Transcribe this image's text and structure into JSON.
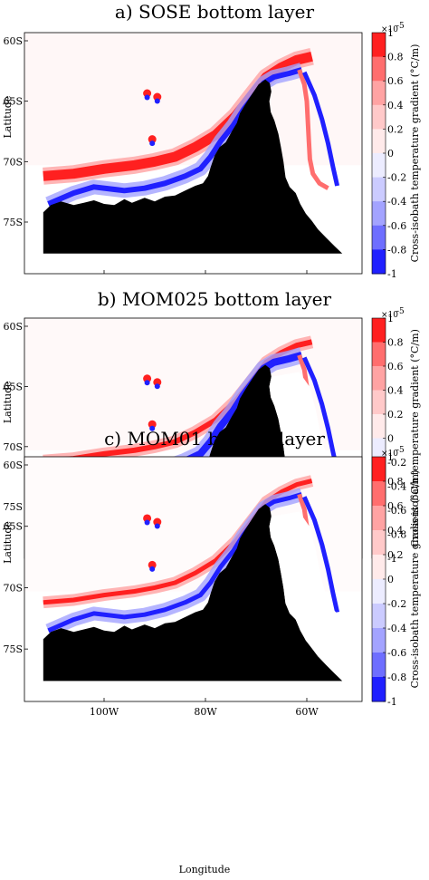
{
  "chart_data": [
    {
      "type": "heatmap",
      "title": "a) SOSE bottom layer",
      "xlabel": "",
      "ylabel": "Latitude",
      "yticks": [
        "60S",
        "65S",
        "70S",
        "75S"
      ],
      "xticks": [],
      "colorbar": {
        "label": "Cross-isobath temperature gradient (°C/m)",
        "multiplier": "×10",
        "exponent": "-5",
        "ticks": [
          "1",
          "0.8",
          "0.6",
          "0.4",
          "0.2",
          "0",
          "-0.2",
          "-0.4",
          "-0.6",
          "-0.8",
          "-1"
        ],
        "range": [
          -1,
          1
        ]
      }
    },
    {
      "type": "heatmap",
      "title": "b) MOM025 bottom layer",
      "xlabel": "",
      "ylabel": "Latitude",
      "yticks": [
        "60S",
        "65S",
        "70S",
        "75S"
      ],
      "xticks": [],
      "colorbar": {
        "label": "Cross-isobath temperature gradient (°C/m)",
        "multiplier": "×10",
        "exponent": "-5",
        "ticks": [
          "1",
          "0.8",
          "0.6",
          "0.4",
          "0.2",
          "0",
          "-0.2",
          "-0.4",
          "-0.6",
          "-0.8",
          "-1"
        ],
        "range": [
          -1,
          1
        ]
      }
    },
    {
      "type": "heatmap",
      "title": "c) MOM01 bottom layer",
      "xlabel": "Longitude",
      "ylabel": "Latitude",
      "yticks": [
        "60S",
        "65S",
        "70S",
        "75S"
      ],
      "xticks": [
        "100W",
        "80W",
        "60W"
      ],
      "colorbar": {
        "label": "Cross-isobath temperature gradient (°C/m)",
        "multiplier": "×10",
        "exponent": "-5",
        "ticks": [
          "1",
          "0.8",
          "0.6",
          "0.4",
          "0.2",
          "0",
          "-0.2",
          "-0.4",
          "-0.6",
          "-0.8",
          "-1"
        ],
        "range": [
          -1,
          1
        ]
      }
    }
  ]
}
